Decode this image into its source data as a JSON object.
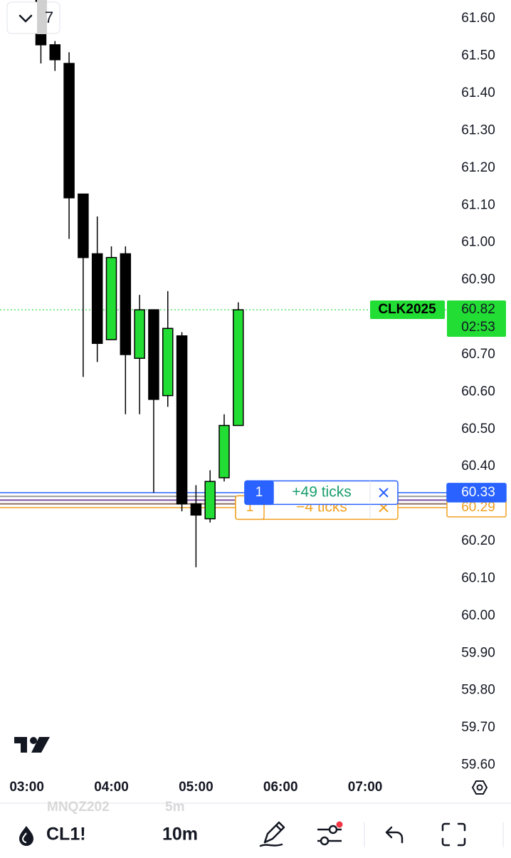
{
  "chart_data": {
    "type": "candlestick",
    "x": [
      "03:10",
      "03:20",
      "03:30",
      "03:40",
      "03:50",
      "04:00",
      "04:10",
      "04:20",
      "04:30",
      "04:40",
      "04:50",
      "05:00",
      "05:10",
      "05:20",
      "05:30"
    ],
    "open": [
      61.68,
      61.53,
      61.48,
      61.13,
      60.97,
      60.74,
      60.97,
      60.69,
      60.82,
      60.59,
      60.75,
      60.3,
      60.26,
      60.37,
      60.51
    ],
    "high": [
      61.68,
      61.54,
      61.51,
      61.13,
      61.07,
      60.99,
      60.99,
      60.86,
      60.82,
      60.87,
      60.76,
      60.35,
      60.39,
      60.54,
      60.84
    ],
    "low": [
      61.48,
      61.46,
      61.01,
      60.64,
      60.68,
      60.74,
      60.54,
      60.54,
      60.33,
      60.56,
      60.28,
      60.13,
      60.25,
      60.36,
      60.51
    ],
    "close": [
      61.53,
      61.49,
      61.12,
      60.96,
      60.73,
      60.96,
      60.7,
      60.82,
      60.58,
      60.77,
      60.3,
      60.27,
      60.36,
      60.51,
      60.82
    ],
    "up_color": "#22dd33",
    "down_color": "#000000",
    "xlim": [
      "02:41",
      "07:58"
    ],
    "xticks": [
      "03:00",
      "04:00",
      "05:00",
      "06:00",
      "07:00"
    ],
    "ylim": [
      59.58,
      61.65
    ],
    "yticks": [
      {
        "value": 61.6,
        "label": "61.60"
      },
      {
        "value": 61.5,
        "label": "61.50"
      },
      {
        "value": 61.4,
        "label": "61.40"
      },
      {
        "value": 61.3,
        "label": "61.30"
      },
      {
        "value": 61.2,
        "label": "61.20"
      },
      {
        "value": 61.1,
        "label": "61.10"
      },
      {
        "value": 61.0,
        "label": "61.00"
      },
      {
        "value": 60.9,
        "label": "60.90"
      },
      {
        "value": 60.8,
        "label": "60.80"
      },
      {
        "value": 60.7,
        "label": "60.70"
      },
      {
        "value": 60.6,
        "label": "60.60"
      },
      {
        "value": 60.5,
        "label": "60.50"
      },
      {
        "value": 60.4,
        "label": "60.40"
      },
      {
        "value": 60.3,
        "label": "60.30"
      },
      {
        "value": 60.2,
        "label": "60.20"
      },
      {
        "value": 60.1,
        "label": "60.10"
      },
      {
        "value": 60.0,
        "label": "60.00"
      },
      {
        "value": 59.9,
        "label": "59.90"
      },
      {
        "value": 59.8,
        "label": "59.80"
      },
      {
        "value": 59.7,
        "label": "59.70"
      },
      {
        "value": 59.6,
        "label": "59.60"
      }
    ],
    "last_price": {
      "symbol": "CLK2025",
      "value": 60.82,
      "countdown": "02:53",
      "color": "#22dd33"
    },
    "levels": [
      {
        "value": 60.32,
        "color": "#9e9e9e"
      },
      {
        "value": 60.31,
        "color": "#7b4fa0"
      },
      {
        "value": 60.3,
        "color": "#8d6e63"
      }
    ],
    "positions": [
      {
        "qty": 1,
        "pnl": "−4 ticks",
        "value": 60.29,
        "color": "#f0a020"
      },
      {
        "qty": 1,
        "pnl": "+49 ticks",
        "value": 60.33,
        "color": "#2962ff"
      }
    ]
  },
  "toolbar": {
    "symbol": "CL1!",
    "interval": "10m",
    "ghost_symbol": "MNQZ202",
    "ghost_interval": "5m"
  },
  "collapse_button": {
    "label": "7"
  }
}
